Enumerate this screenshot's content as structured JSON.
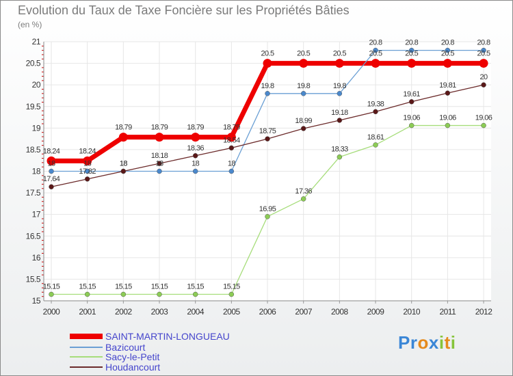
{
  "title": "Evolution du Taux de Taxe Foncière sur les Propriétés Bâties",
  "unit_label": "(en %)",
  "logo": {
    "text": "Proxiti",
    "letters": [
      "P",
      "r",
      "o",
      "x",
      "i",
      "t",
      "i"
    ],
    "colors": [
      "#3a86d6",
      "#3a86d6",
      "#e58a1c",
      "#3a86d6",
      "#86c43a",
      "#e58a1c",
      "#86c43a"
    ]
  },
  "chart_data": {
    "type": "line",
    "title": "Evolution du Taux de Taxe Foncière sur les Propriétés Bâties",
    "ylabel": "(en %)",
    "xlabel": "",
    "x": [
      "2000",
      "2001",
      "2002",
      "2003",
      "2004",
      "2005",
      "2006",
      "2007",
      "2008",
      "2009",
      "2010",
      "2011",
      "2012"
    ],
    "ylim": [
      15,
      21
    ],
    "yticks": [
      "15",
      "15.5",
      "16",
      "16.5",
      "17",
      "17.5",
      "18",
      "18.5",
      "19",
      "19.5",
      "20",
      "20.5",
      "21"
    ],
    "grid": true,
    "legend_position": "bottom-left",
    "series": [
      {
        "name": "SAINT-MARTIN-LONGUEAU",
        "color": "#ee0000",
        "marker": "#ee0000",
        "width": 7,
        "values": [
          18.24,
          18.24,
          18.79,
          18.79,
          18.79,
          18.79,
          20.5,
          20.5,
          20.5,
          20.5,
          20.5,
          20.5,
          20.5
        ],
        "labels": [
          "18.24",
          "18.24",
          "18.79",
          "18.79",
          "18.79",
          "18.79",
          "20.5",
          "20.5",
          "20.5",
          "20.5",
          "20.5",
          "20.5",
          "20.5"
        ]
      },
      {
        "name": "Bazicourt",
        "color": "#6a9fd4",
        "marker": "#4a88cc",
        "width": 1.3,
        "values": [
          18,
          18,
          18,
          18,
          18,
          18,
          19.8,
          19.8,
          19.8,
          20.8,
          20.8,
          20.8,
          20.8
        ],
        "labels": [
          "18",
          "18",
          "18",
          "18",
          "18",
          "18",
          "19.8",
          "19.8",
          "19.8",
          "20.8",
          "20.8",
          "20.8",
          "20.8"
        ]
      },
      {
        "name": "Sacy-le-Petit",
        "color": "#a6dd7a",
        "marker": "#8ccc55",
        "width": 1.3,
        "values": [
          15.15,
          15.15,
          15.15,
          15.15,
          15.15,
          15.15,
          16.95,
          17.36,
          18.33,
          18.61,
          19.06,
          19.06,
          19.06
        ],
        "labels": [
          "15.15",
          "15.15",
          "15.15",
          "15.15",
          "15.15",
          "15.15",
          "16.95",
          "17.36",
          "18.33",
          "18.61",
          "19.06",
          "19.06",
          "19.06"
        ]
      },
      {
        "name": "Houdancourt",
        "color": "#6b2a2a",
        "marker": "#5a1818",
        "width": 1.3,
        "values": [
          17.64,
          17.82,
          18,
          18.18,
          18.36,
          18.54,
          18.75,
          18.99,
          19.18,
          19.38,
          19.61,
          19.81,
          20
        ],
        "labels": [
          "17.64",
          "17.82",
          "18",
          "18.18",
          "18.36",
          "18.54",
          "18.75",
          "18.99",
          "19.18",
          "19.38",
          "19.61",
          "19.81",
          "20"
        ]
      }
    ]
  }
}
